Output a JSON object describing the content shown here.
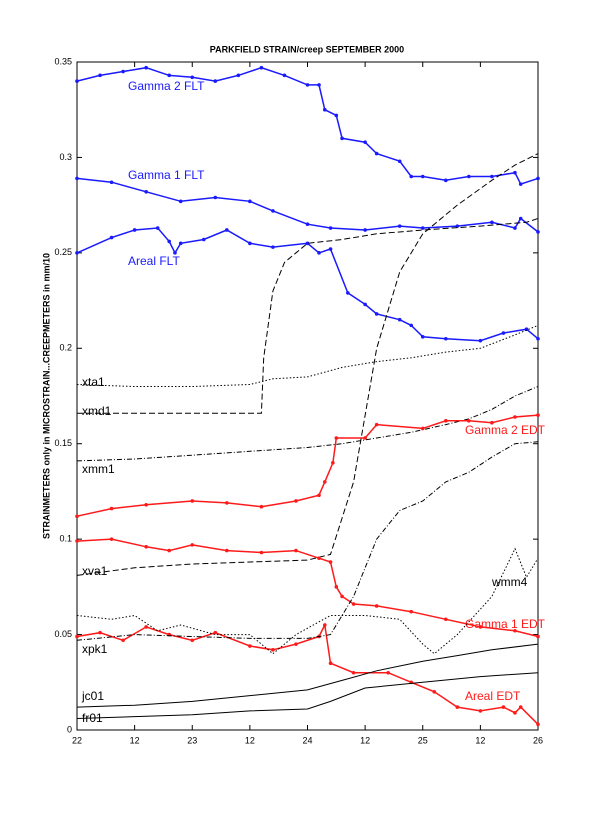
{
  "chart_data": {
    "type": "line",
    "title": "PARKFIELD STRAIN/creep SEPTEMBER 2000",
    "y_label": "STRAINMETERS only in MICROSTRAIN...CREEPMETERS in mm/10",
    "xlim": [
      22,
      26
    ],
    "xticks": [
      22,
      {
        "value": 22.5,
        "label": "12"
      },
      23,
      {
        "value": 23.5,
        "label": "12"
      },
      24,
      {
        "value": 24.5,
        "label": "12"
      },
      25,
      {
        "value": 25.5,
        "label": "12"
      },
      26
    ],
    "ylim": [
      0,
      0.35
    ],
    "yticks": [
      0,
      0.05,
      0.1,
      0.15,
      0.2,
      0.25,
      0.3,
      0.35
    ],
    "series": [
      {
        "name": "Gamma 2 FLT",
        "color": "#1a1aff",
        "line_style": "solid",
        "marker": true,
        "x": [
          22,
          22.2,
          22.4,
          22.6,
          22.8,
          23.0,
          23.2,
          23.4,
          23.6,
          23.8,
          24.0,
          24.1,
          24.15,
          24.25,
          24.3,
          24.5,
          24.6,
          24.8,
          24.9,
          25.0,
          25.2,
          25.4,
          25.6,
          25.8,
          25.85,
          26
        ],
        "values": [
          0.34,
          0.343,
          0.345,
          0.347,
          0.343,
          0.342,
          0.34,
          0.343,
          0.347,
          0.343,
          0.338,
          0.338,
          0.325,
          0.322,
          0.31,
          0.308,
          0.302,
          0.298,
          0.29,
          0.29,
          0.288,
          0.29,
          0.29,
          0.292,
          0.286,
          0.289
        ]
      },
      {
        "name": "Gamma 1 FLT",
        "color": "#1a1aff",
        "line_style": "solid",
        "marker": true,
        "x": [
          22,
          22.3,
          22.6,
          22.9,
          23.2,
          23.5,
          23.7,
          24.0,
          24.2,
          24.5,
          24.8,
          25.0,
          25.3,
          25.6,
          25.8,
          25.85,
          26
        ],
        "values": [
          0.289,
          0.287,
          0.282,
          0.277,
          0.279,
          0.277,
          0.272,
          0.265,
          0.263,
          0.262,
          0.264,
          0.263,
          0.264,
          0.266,
          0.263,
          0.268,
          0.261
        ]
      },
      {
        "name": "Areal FLT",
        "color": "#1a1aff",
        "line_style": "solid",
        "marker": true,
        "x": [
          22,
          22.3,
          22.5,
          22.7,
          22.8,
          22.85,
          22.9,
          23.1,
          23.3,
          23.5,
          23.7,
          24.0,
          24.1,
          24.2,
          24.35,
          24.5,
          24.6,
          24.8,
          24.9,
          25.0,
          25.2,
          25.5,
          25.7,
          25.9,
          26
        ],
        "values": [
          0.25,
          0.258,
          0.262,
          0.263,
          0.256,
          0.25,
          0.255,
          0.257,
          0.262,
          0.255,
          0.253,
          0.255,
          0.25,
          0.252,
          0.229,
          0.223,
          0.218,
          0.215,
          0.212,
          0.206,
          0.205,
          0.204,
          0.208,
          0.21,
          0.205
        ]
      },
      {
        "name": "xta1",
        "color": "#000000",
        "line_style": "dotted",
        "marker": false,
        "x": [
          22,
          22.5,
          23.0,
          23.5,
          23.7,
          24.0,
          24.3,
          24.6,
          24.9,
          25.2,
          25.5,
          25.8,
          26
        ],
        "values": [
          0.181,
          0.18,
          0.18,
          0.181,
          0.184,
          0.185,
          0.19,
          0.193,
          0.195,
          0.198,
          0.2,
          0.207,
          0.212
        ]
      },
      {
        "name": "xmd1",
        "color": "#000000",
        "line_style": "dashed",
        "marker": false,
        "x": [
          22,
          23.0,
          23.6,
          23.62,
          23.7,
          23.8,
          24.0,
          24.3,
          24.6,
          25.0,
          25.5,
          25.9,
          26
        ],
        "values": [
          0.166,
          0.166,
          0.166,
          0.195,
          0.23,
          0.245,
          0.255,
          0.257,
          0.26,
          0.262,
          0.264,
          0.266,
          0.268
        ]
      },
      {
        "name": "xmm1",
        "color": "#000000",
        "line_style": "dashdot",
        "marker": false,
        "x": [
          22,
          22.5,
          23.0,
          23.5,
          24.0,
          24.3,
          24.6,
          24.9,
          25.2,
          25.4,
          25.6,
          25.8,
          26
        ],
        "values": [
          0.141,
          0.142,
          0.144,
          0.146,
          0.148,
          0.15,
          0.153,
          0.156,
          0.16,
          0.163,
          0.168,
          0.175,
          0.18
        ]
      },
      {
        "name": "xva1",
        "color": "#000000",
        "line_style": "dashed",
        "marker": false,
        "x": [
          22,
          22.5,
          23.0,
          23.5,
          24.0,
          24.2,
          24.4,
          24.6,
          24.8,
          25.0,
          25.3,
          25.6,
          25.8,
          26
        ],
        "values": [
          0.081,
          0.085,
          0.087,
          0.088,
          0.089,
          0.092,
          0.13,
          0.2,
          0.24,
          0.26,
          0.275,
          0.288,
          0.296,
          0.302
        ]
      },
      {
        "name": "Gamma 2 EDT",
        "color": "#ff1a1a",
        "line_style": "solid",
        "marker": true,
        "x": [
          22,
          22.3,
          22.6,
          23.0,
          23.3,
          23.6,
          23.9,
          24.1,
          24.15,
          24.22,
          24.25,
          24.5,
          24.6,
          25.0,
          25.2,
          25.4,
          25.6,
          25.8,
          26
        ],
        "values": [
          0.112,
          0.116,
          0.118,
          0.12,
          0.119,
          0.117,
          0.12,
          0.123,
          0.13,
          0.14,
          0.153,
          0.153,
          0.16,
          0.158,
          0.162,
          0.162,
          0.161,
          0.164,
          0.165
        ]
      },
      {
        "name": "Gamma 1 EDT",
        "color": "#ff1a1a",
        "line_style": "solid",
        "marker": true,
        "x": [
          22,
          22.3,
          22.6,
          22.8,
          23.0,
          23.3,
          23.6,
          23.9,
          24.1,
          24.2,
          24.25,
          24.3,
          24.4,
          24.6,
          24.9,
          25.2,
          25.5,
          25.8,
          26
        ],
        "values": [
          0.099,
          0.1,
          0.096,
          0.094,
          0.097,
          0.094,
          0.093,
          0.094,
          0.09,
          0.088,
          0.075,
          0.07,
          0.066,
          0.065,
          0.062,
          0.058,
          0.054,
          0.052,
          0.049
        ]
      },
      {
        "name": "Areal EDT",
        "color": "#ff1a1a",
        "line_style": "solid",
        "marker": true,
        "x": [
          22,
          22.2,
          22.4,
          22.6,
          22.8,
          23.0,
          23.2,
          23.5,
          23.7,
          23.9,
          24.1,
          24.15,
          24.2,
          24.4,
          24.7,
          24.9,
          25.1,
          25.3,
          25.5,
          25.7,
          25.8,
          25.85,
          26
        ],
        "values": [
          0.049,
          0.051,
          0.047,
          0.054,
          0.05,
          0.047,
          0.051,
          0.044,
          0.042,
          0.045,
          0.049,
          0.055,
          0.035,
          0.03,
          0.03,
          0.025,
          0.02,
          0.012,
          0.01,
          0.012,
          0.009,
          0.012,
          0.003
        ]
      },
      {
        "name": "wmm4",
        "color": "#000000",
        "line_style": "dotted",
        "marker": false,
        "x": [
          22,
          22.3,
          22.5,
          22.7,
          22.9,
          23.2,
          23.5,
          23.7,
          23.9,
          24.2,
          24.5,
          24.8,
          25.0,
          25.1,
          25.3,
          25.6,
          25.8,
          25.9,
          26
        ],
        "values": [
          0.06,
          0.058,
          0.06,
          0.052,
          0.055,
          0.05,
          0.05,
          0.04,
          0.05,
          0.06,
          0.06,
          0.058,
          0.045,
          0.04,
          0.05,
          0.07,
          0.095,
          0.08,
          0.09
        ]
      },
      {
        "name": "xpk1",
        "color": "#000000",
        "line_style": "dashdot",
        "marker": false,
        "x": [
          22,
          22.5,
          23.0,
          23.5,
          24.0,
          24.2,
          24.4,
          24.6,
          24.8,
          25.0,
          25.2,
          25.4,
          25.6,
          25.8,
          26
        ],
        "values": [
          0.047,
          0.05,
          0.049,
          0.048,
          0.048,
          0.05,
          0.07,
          0.1,
          0.115,
          0.12,
          0.13,
          0.135,
          0.143,
          0.15,
          0.151
        ]
      },
      {
        "name": "jc01",
        "color": "#000000",
        "line_style": "solid",
        "marker": false,
        "x": [
          22,
          22.5,
          23.0,
          23.5,
          24.0,
          24.3,
          24.6,
          25.0,
          25.3,
          25.6,
          26
        ],
        "values": [
          0.012,
          0.013,
          0.015,
          0.018,
          0.021,
          0.026,
          0.031,
          0.036,
          0.039,
          0.042,
          0.045
        ]
      },
      {
        "name": "fr01",
        "color": "#000000",
        "line_style": "solid",
        "marker": false,
        "x": [
          22,
          22.5,
          23.0,
          23.5,
          24.0,
          24.2,
          24.5,
          25.0,
          25.5,
          26
        ],
        "values": [
          0.006,
          0.007,
          0.008,
          0.01,
          0.011,
          0.015,
          0.022,
          0.025,
          0.028,
          0.03
        ]
      }
    ]
  }
}
